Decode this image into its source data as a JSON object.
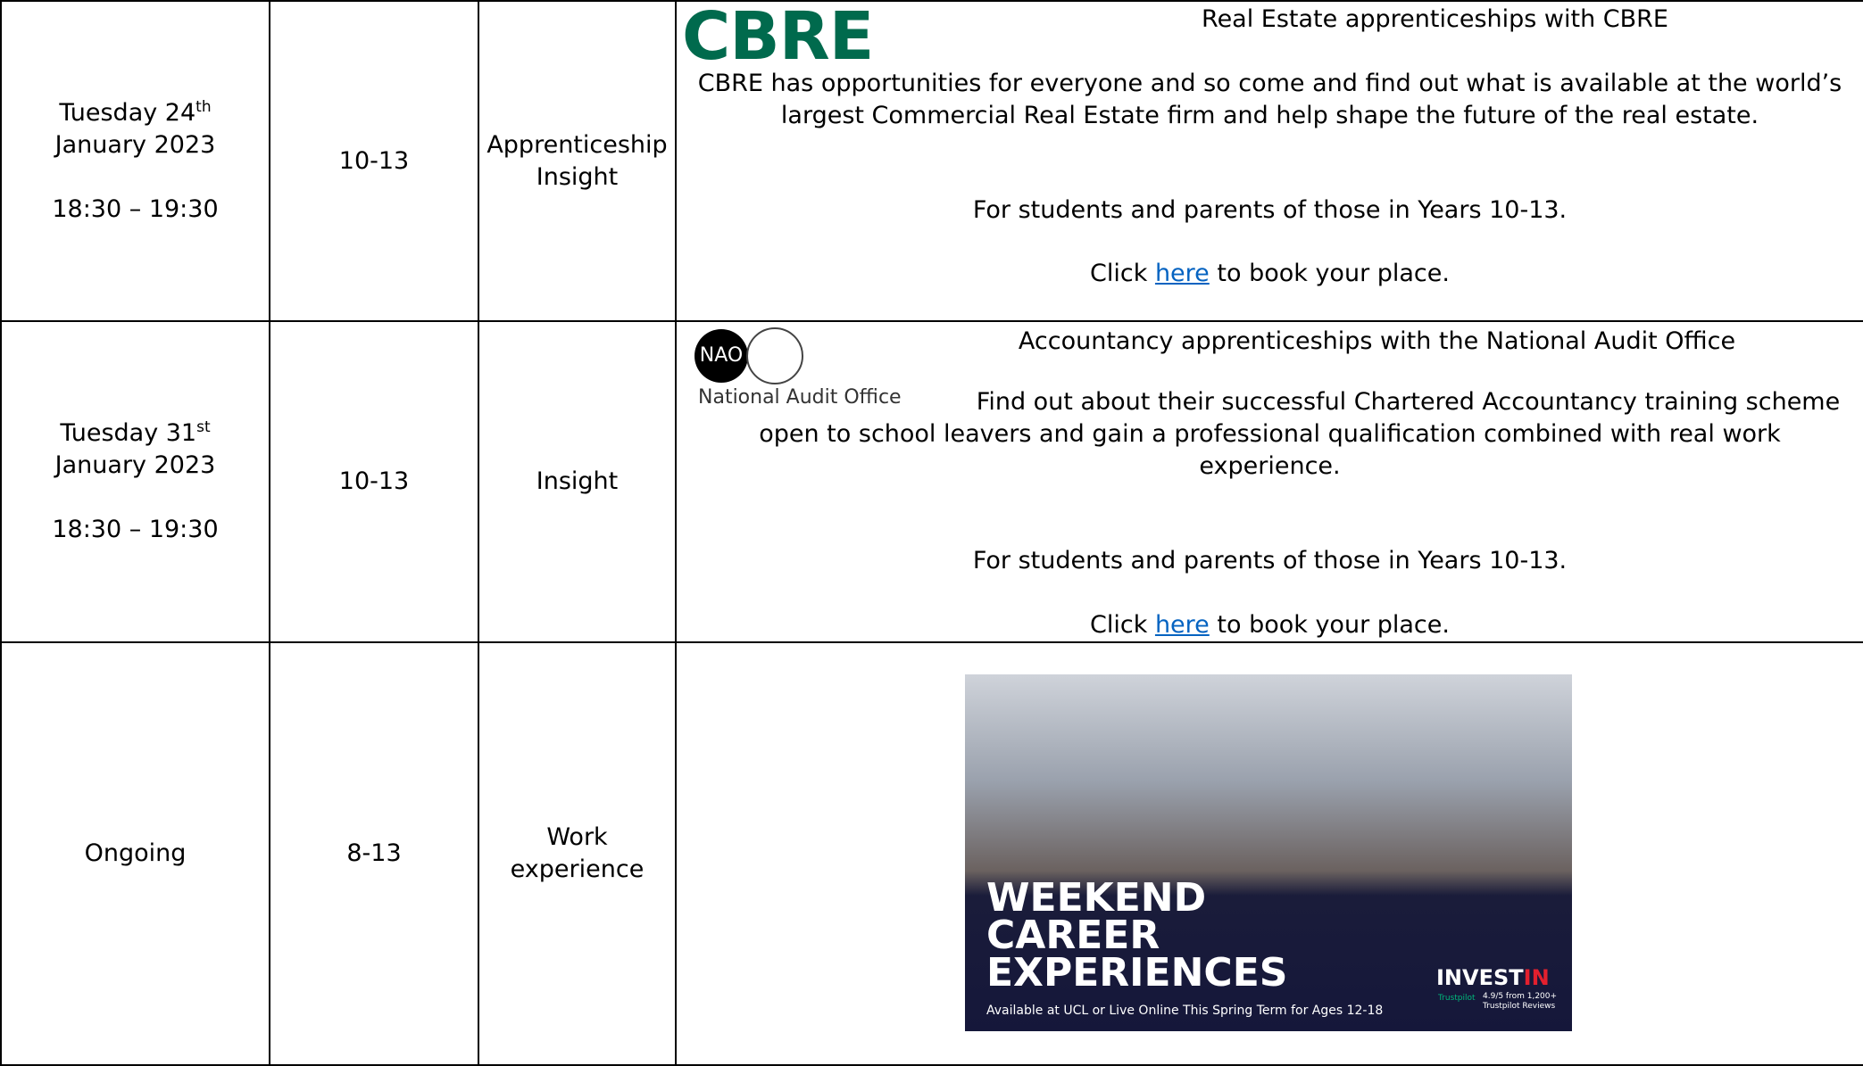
{
  "table": {
    "rows": [
      {
        "date": {
          "day": "Tuesday 24",
          "sup": "th",
          "month": "January 2023",
          "time": "18:30 – 19:30"
        },
        "years": "10-13",
        "type": "Apprenticeship Insight",
        "logo": "CBRE",
        "title": "Real Estate apprenticeships with CBRE",
        "description": "CBRE has opportunities for everyone and so come and find out what is available at the world’s largest Commercial Real Estate firm and help shape the future of the real estate.",
        "audience": "For students and parents of those in Years 10-13.",
        "booking": {
          "before": "Click",
          "link": "here",
          "after": "to book your place."
        }
      },
      {
        "date": {
          "day": "Tuesday 31",
          "sup": "st",
          "month": "January 2023",
          "time": "18:30 – 19:30"
        },
        "years": "10-13",
        "type": "Insight",
        "logo": {
          "badge": "NAO",
          "name": "National Audit Office"
        },
        "title": "Accountancy apprenticeships with the National Audit Office",
        "description": "Find out about their successful Chartered Accountancy training scheme open to school leavers and gain a professional qualification combined with real work experience.",
        "audience": "For students and parents of those in Years 10-13.",
        "booking": {
          "before": "Click",
          "link": "here",
          "after": "to book your place."
        }
      },
      {
        "date": "Ongoing",
        "years": "8-13",
        "type": "Work experience",
        "poster": {
          "headline": [
            "WEEKEND",
            "CAREER",
            "EXPERIENCES"
          ],
          "subline": "Available at UCL or Live Online This Spring Term for Ages 12-18",
          "brand": "INVEST",
          "brand_accent": "IN",
          "rating_source": "Trustpilot",
          "rating": "4.9/5 from 1,200+ Trustpilot Reviews"
        }
      }
    ]
  }
}
